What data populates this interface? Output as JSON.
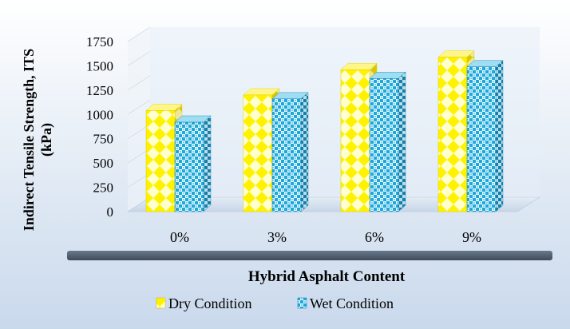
{
  "chart_data": {
    "type": "bar",
    "categories": [
      "0%",
      "3%",
      "6%",
      "9%"
    ],
    "series": [
      {
        "name": "Dry Condition",
        "values": [
          1040,
          1200,
          1460,
          1590
        ]
      },
      {
        "name": "Wet Condition",
        "values": [
          920,
          1160,
          1370,
          1490
        ]
      }
    ],
    "xlabel": "Hybrid Asphalt Content",
    "ylabel": "Indirect Tensile Strength, ITS (kPa)",
    "ylabel_lines": [
      "Indirect Tensile Strength, ITS",
      "(kPa)"
    ],
    "yticks": [
      "0",
      "250",
      "500",
      "750",
      "1000",
      "1250",
      "1500",
      "1750"
    ],
    "ylim": [
      0,
      1750
    ],
    "legend_position": "bottom",
    "colors": {
      "dry_fill": "#FFF200",
      "dry_pattern_light": "#FFFFD0",
      "wet_fill": "#1EA7D9",
      "wet_pattern_light": "#E8F8FF",
      "background_top": "#FFFFFF",
      "background_bottom": "#C9D9EC"
    }
  }
}
